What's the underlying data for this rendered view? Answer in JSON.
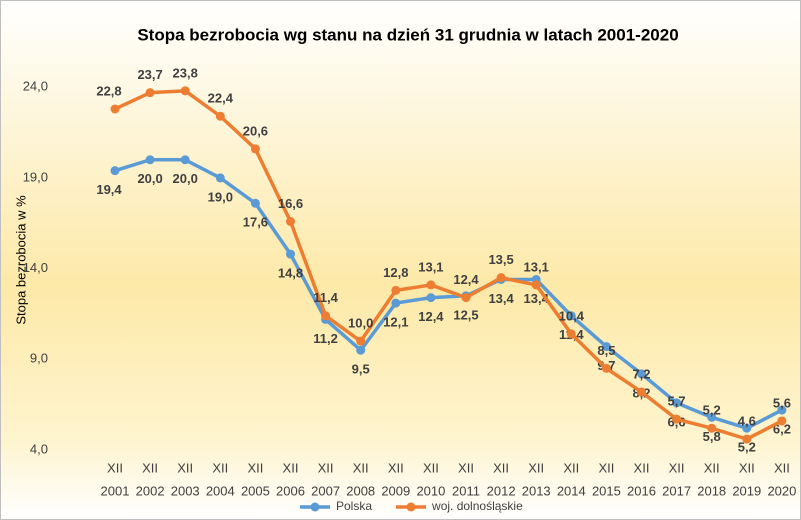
{
  "chart_data": {
    "type": "line",
    "title": "Stopa bezrobocia wg stanu na dzień 31 grudnia w latach 2001-2020",
    "y_label": "Stopa bezrobocia w %",
    "categories": [
      [
        "XII",
        "2001"
      ],
      [
        "XII",
        "2002"
      ],
      [
        "XII",
        "2003"
      ],
      [
        "XII",
        "2004"
      ],
      [
        "XII",
        "2005"
      ],
      [
        "XII",
        "2006"
      ],
      [
        "XII",
        "2007"
      ],
      [
        "XII",
        "2008"
      ],
      [
        "XII",
        "2009"
      ],
      [
        "XII",
        "2010"
      ],
      [
        "XII",
        "2011"
      ],
      [
        "XII",
        "2012"
      ],
      [
        "XII",
        "2013"
      ],
      [
        "XII",
        "2014"
      ],
      [
        "XII",
        "2015"
      ],
      [
        "XII",
        "2016"
      ],
      [
        "XII",
        "2017"
      ],
      [
        "XII",
        "2018"
      ],
      [
        "XII",
        "2019"
      ],
      [
        "XII",
        "2020"
      ]
    ],
    "series": [
      {
        "name": "Polska",
        "color": "#5b9bd5",
        "values": [
          19.4,
          20.0,
          20.0,
          19.0,
          17.6,
          14.8,
          11.2,
          9.5,
          12.1,
          12.4,
          12.5,
          13.4,
          13.4,
          11.4,
          9.7,
          8.2,
          6.6,
          5.8,
          5.2,
          6.2
        ],
        "value_labels": [
          "19,4",
          "20,0",
          "20,0",
          "19,0",
          "17,6",
          "14,8",
          "11,2",
          "9,5",
          "12,1",
          "12,4",
          "12,5",
          "13,4",
          "13,4",
          "11,4",
          "9,7",
          "8,2",
          "6,6",
          "5,8",
          "5,2",
          "6,2"
        ]
      },
      {
        "name": "woj. dolnośląskie",
        "color": "#ed7d31",
        "values": [
          22.8,
          23.7,
          23.8,
          22.4,
          20.6,
          16.6,
          11.4,
          10.0,
          12.8,
          13.1,
          12.4,
          13.5,
          13.1,
          10.4,
          8.5,
          7.2,
          5.7,
          5.2,
          4.6,
          5.6
        ],
        "value_labels": [
          "22,8",
          "23,7",
          "23,8",
          "22,4",
          "20,6",
          "16,6",
          "11,4",
          "10,0",
          "12,8",
          "13,1",
          "12,4",
          "13,5",
          "13,1",
          "10,4",
          "8,5",
          "7,2",
          "5,7",
          "5,2",
          "4,6",
          "5,6"
        ]
      }
    ],
    "ylim": [
      4,
      25.5
    ],
    "yticks": [
      {
        "value": 4,
        "label": "4,0"
      },
      {
        "value": 9,
        "label": "9,0"
      },
      {
        "value": 14,
        "label": "14,0"
      },
      {
        "value": 19,
        "label": "19,0"
      },
      {
        "value": 24,
        "label": "24,0"
      }
    ],
    "legend": "bottom"
  }
}
